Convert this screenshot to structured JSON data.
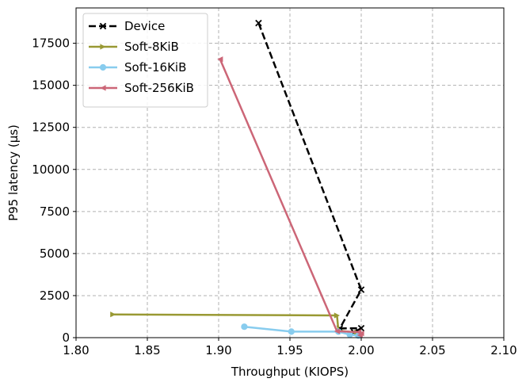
{
  "chart_data": {
    "type": "line",
    "xlabel": "Throughput (KIOPS)",
    "ylabel": "P95 latency (µs)",
    "xlim": [
      1.8,
      2.1
    ],
    "ylim": [
      0,
      19600
    ],
    "xticks": [
      1.8,
      1.85,
      1.9,
      1.95,
      2.0,
      2.05,
      2.1
    ],
    "xtick_labels": [
      "1.80",
      "1.85",
      "1.90",
      "1.95",
      "2.00",
      "2.05",
      "2.10"
    ],
    "yticks": [
      0,
      2500,
      5000,
      7500,
      10000,
      12500,
      15000,
      17500
    ],
    "ytick_labels": [
      "0",
      "2500",
      "5000",
      "7500",
      "10000",
      "12500",
      "15000",
      "17500"
    ],
    "grid": true,
    "legend_position": "top-left",
    "series": [
      {
        "name": "Device",
        "color": "#000000",
        "dash": "dashed",
        "marker": "x",
        "points": [
          [
            1.928,
            18700
          ],
          [
            2.0,
            2850
          ],
          [
            1.985,
            550
          ],
          [
            2.0,
            560
          ],
          [
            1.995,
            320
          ]
        ]
      },
      {
        "name": "Soft-8KiB",
        "color": "#999933",
        "dash": "solid",
        "marker": "triangle-right",
        "points": [
          [
            1.826,
            1380
          ],
          [
            1.983,
            1320
          ],
          [
            1.984,
            420
          ],
          [
            1.997,
            300
          ],
          [
            1.999,
            180
          ]
        ]
      },
      {
        "name": "Soft-16KiB",
        "color": "#88ccee",
        "dash": "solid",
        "marker": "circle",
        "points": [
          [
            1.918,
            650
          ],
          [
            1.951,
            360
          ],
          [
            1.984,
            360
          ],
          [
            1.992,
            180
          ],
          [
            1.998,
            120
          ]
        ]
      },
      {
        "name": "Soft-256KiB",
        "color": "#cc6677",
        "dash": "solid",
        "marker": "triangle-left",
        "points": [
          [
            1.901,
            16550
          ],
          [
            1.983,
            380
          ],
          [
            1.998,
            330
          ],
          [
            2.0,
            250
          ],
          [
            1.999,
            150
          ]
        ]
      }
    ]
  }
}
